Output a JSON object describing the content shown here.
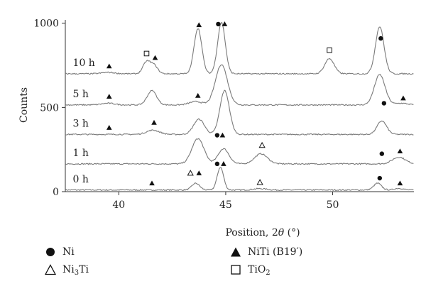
{
  "chart_data": {
    "type": "line",
    "xlabel_prefix": "Position, 2",
    "xlabel_theta": "θ",
    "xlabel_suffix": " (°)",
    "ylabel": "Counts",
    "xlim": [
      37.5,
      53.8
    ],
    "ylim": [
      0,
      1020
    ],
    "x_ticks": [
      40,
      45,
      50
    ],
    "y_ticks": [
      0,
      500,
      1000
    ],
    "grid": false,
    "series": [
      {
        "name": "0 h",
        "offset": 10,
        "peaks": [
          [
            43.6,
            40,
            0.18
          ],
          [
            44.75,
            135,
            0.15
          ],
          [
            46.6,
            8,
            0.3
          ],
          [
            52.1,
            40,
            0.18
          ],
          [
            53.1,
            10,
            0.2
          ]
        ]
      },
      {
        "name": "1 h",
        "offset": 165,
        "peaks": [
          [
            43.7,
            150,
            0.28
          ],
          [
            44.9,
            90,
            0.25
          ],
          [
            46.65,
            60,
            0.3
          ],
          [
            53.1,
            40,
            0.3
          ]
        ]
      },
      {
        "name": "3 h",
        "offset": 340,
        "peaks": [
          [
            41.6,
            25,
            0.3
          ],
          [
            43.75,
            90,
            0.25
          ],
          [
            44.95,
            260,
            0.22
          ],
          [
            52.3,
            80,
            0.22
          ]
        ]
      },
      {
        "name": "5 h",
        "offset": 515,
        "peaks": [
          [
            39.5,
            10,
            0.3
          ],
          [
            41.55,
            85,
            0.22
          ],
          [
            43.6,
            20,
            0.3
          ],
          [
            44.8,
            240,
            0.28
          ],
          [
            52.2,
            180,
            0.25
          ],
          [
            53.2,
            10,
            0.3
          ]
        ]
      },
      {
        "name": "10 h",
        "offset": 700,
        "peaks": [
          [
            39.5,
            8,
            0.3
          ],
          [
            41.3,
            70,
            0.17
          ],
          [
            41.65,
            50,
            0.17
          ],
          [
            43.7,
            270,
            0.18
          ],
          [
            44.8,
            305,
            0.18
          ],
          [
            49.85,
            90,
            0.22
          ],
          [
            52.2,
            280,
            0.2
          ]
        ]
      }
    ],
    "markers": [
      {
        "type": "NiTi",
        "x": 41.55,
        "y": 50
      },
      {
        "type": "Ni3Ti",
        "x": 43.35,
        "y": 110
      },
      {
        "type": "NiTi",
        "x": 43.75,
        "y": 110
      },
      {
        "type": "Ni",
        "x": 44.6,
        "y": 165
      },
      {
        "type": "NiTi",
        "x": 44.9,
        "y": 165
      },
      {
        "type": "Ni3Ti",
        "x": 46.6,
        "y": 55
      },
      {
        "type": "Ni",
        "x": 52.2,
        "y": 80
      },
      {
        "type": "NiTi",
        "x": 53.15,
        "y": 50
      },
      {
        "type": "Ni",
        "x": 44.6,
        "y": 335
      },
      {
        "type": "NiTi",
        "x": 44.85,
        "y": 335
      },
      {
        "type": "Ni3Ti",
        "x": 46.7,
        "y": 275
      },
      {
        "type": "Ni",
        "x": 52.3,
        "y": 225
      },
      {
        "type": "NiTi",
        "x": 53.15,
        "y": 240
      },
      {
        "type": "NiTi",
        "x": 39.55,
        "y": 380
      },
      {
        "type": "NiTi",
        "x": 41.65,
        "y": 410
      },
      {
        "type": "Ni",
        "x": 52.4,
        "y": 525
      },
      {
        "type": "NiTi",
        "x": 39.55,
        "y": 565
      },
      {
        "type": "NiTi",
        "x": 43.7,
        "y": 570
      },
      {
        "type": "NiTi",
        "x": 53.3,
        "y": 555
      },
      {
        "type": "NiTi",
        "x": 39.55,
        "y": 745
      },
      {
        "type": "TiO2",
        "x": 41.3,
        "y": 820
      },
      {
        "type": "NiTi",
        "x": 41.7,
        "y": 795
      },
      {
        "type": "NiTi",
        "x": 43.75,
        "y": 990
      },
      {
        "type": "Ni",
        "x": 44.65,
        "y": 995
      },
      {
        "type": "NiTi",
        "x": 44.95,
        "y": 995
      },
      {
        "type": "TiO2",
        "x": 49.85,
        "y": 840
      },
      {
        "type": "Ni",
        "x": 52.25,
        "y": 910
      }
    ]
  },
  "legend": [
    {
      "key": "Ni",
      "symbol": "filled-circle",
      "label": "Ni"
    },
    {
      "key": "Ni3Ti",
      "symbol": "open-triangle",
      "label_main": "Ni",
      "label_sub": "3",
      "label_tail": "Ti"
    },
    {
      "key": "NiTi",
      "symbol": "filled-triangle",
      "label": "NiTi (B19′)"
    },
    {
      "key": "TiO2",
      "symbol": "open-square",
      "label_main": "TiO",
      "label_sub": "2",
      "label_tail": ""
    }
  ],
  "colors": {
    "trace": "#7a7a7a",
    "axis": "#333333",
    "marker": "#111111"
  }
}
